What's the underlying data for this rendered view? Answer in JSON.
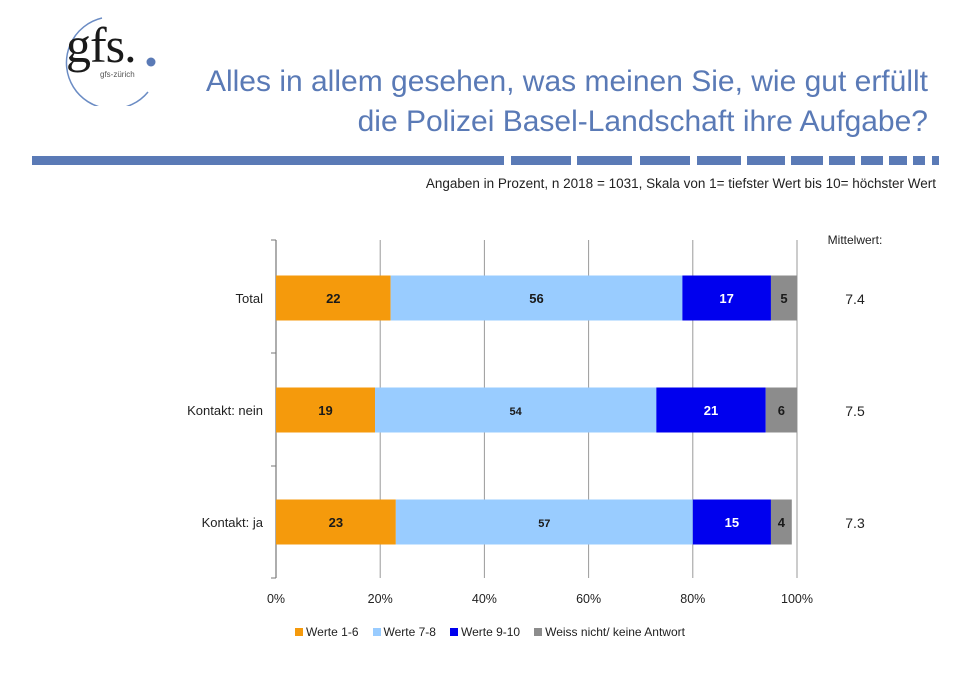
{
  "logo": {
    "text": "gfs.",
    "subtext": "gfs-zürich"
  },
  "title": {
    "line1": "Alles in allem gesehen, was meinen Sie, wie gut erfüllt",
    "line2": "die Polizei Basel-Landschaft ihre Aufgabe?"
  },
  "subtitle": "Angaben in Prozent, n 2018 = 1031, Skala von 1= tiefster Wert bis 10= höchster Wert",
  "mean_header": "Mittelwert:",
  "chart_data": {
    "type": "bar",
    "orientation": "horizontal",
    "stacked": true,
    "categories": [
      "Total",
      "Kontakt: nein",
      "Kontakt: ja"
    ],
    "series": [
      {
        "name": "Werte 1-6",
        "values": [
          22,
          19,
          23
        ],
        "color": "#f59a0c"
      },
      {
        "name": "Werte 7-8",
        "values": [
          56,
          54,
          57
        ],
        "color": "#99ccff"
      },
      {
        "name": "Werte 9-10",
        "values": [
          17,
          21,
          15
        ],
        "color": "#0000ee"
      },
      {
        "name": "Weiss nicht/ keine Antwort",
        "values": [
          5,
          6,
          4
        ],
        "color": "#8c8c8c"
      }
    ],
    "means": [
      "7.4",
      "7.5",
      "7.3"
    ],
    "x_ticks": [
      "0%",
      "20%",
      "40%",
      "60%",
      "80%",
      "100%"
    ],
    "xlim": [
      0,
      100
    ],
    "grid": true,
    "legend_position": "bottom"
  }
}
